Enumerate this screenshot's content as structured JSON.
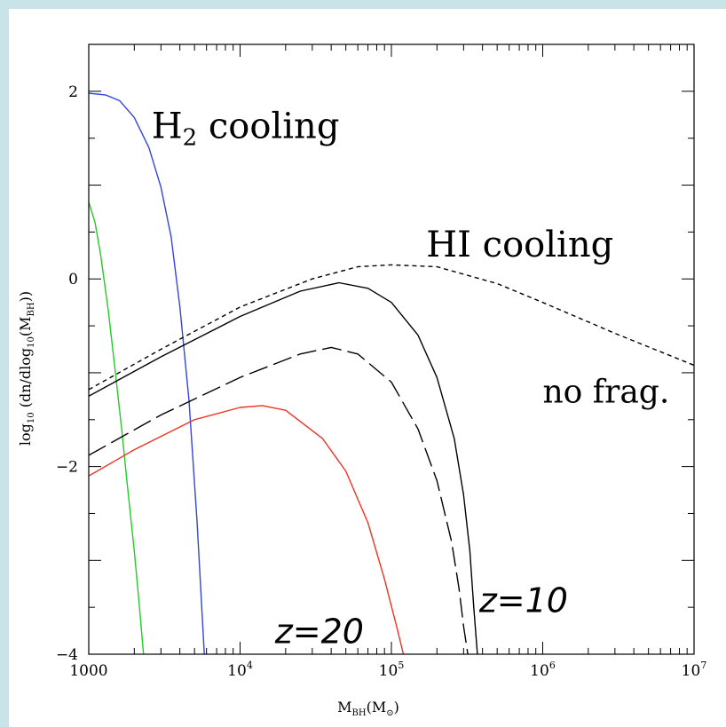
{
  "chart_data": {
    "type": "line",
    "title": "",
    "xlabel": "M_BH(M_⊙)",
    "xlabel_parts": {
      "main": "M",
      "sub": "BH",
      "paren_open": "(M",
      "sun_sub": "⊙",
      "paren_close": ")"
    },
    "ylabel": "log10 (dn/dlog10(MBH))",
    "ylabel_parts": {
      "a": "log",
      "a_sub": "10",
      "b": " (dn/dlog",
      "b_sub": "10",
      "c": "(M",
      "c_sub": "BH",
      "d": "))"
    },
    "x_scale": "log",
    "xlim": [
      1000,
      10000000
    ],
    "ylim": [
      -4,
      2.5
    ],
    "x_ticks": [
      {
        "value": 1000,
        "base": "1000",
        "exp": ""
      },
      {
        "value": 10000,
        "base": "10",
        "exp": "4"
      },
      {
        "value": 100000,
        "base": "10",
        "exp": "5"
      },
      {
        "value": 1000000,
        "base": "10",
        "exp": "6"
      },
      {
        "value": 10000000,
        "base": "10",
        "exp": "7"
      }
    ],
    "y_ticks": [
      {
        "value": 2,
        "label": "2"
      },
      {
        "value": 0,
        "label": "0"
      },
      {
        "value": -2,
        "label": "−2"
      },
      {
        "value": -4,
        "label": "−4"
      }
    ],
    "grid": false,
    "series": [
      {
        "color": "#3344dd",
        "dash": "",
        "x": [
          1000,
          1300,
          1600,
          2000,
          2500,
          3000,
          3500,
          4000,
          4600,
          5200,
          5800
        ],
        "y": [
          1.98,
          1.96,
          1.9,
          1.72,
          1.4,
          0.98,
          0.45,
          -0.3,
          -1.3,
          -2.6,
          -4.0
        ]
      },
      {
        "color": "#22cc22",
        "dash": "",
        "x": [
          1000,
          1100,
          1200,
          1350,
          1500,
          1650,
          1800,
          2000,
          2150,
          2300
        ],
        "y": [
          0.82,
          0.6,
          0.25,
          -0.35,
          -1.0,
          -1.6,
          -2.2,
          -2.9,
          -3.45,
          -4.0
        ]
      },
      {
        "color": "#000000",
        "dash": "5,4",
        "x": [
          1000,
          3000,
          10000,
          30000,
          60000,
          100000,
          200000,
          500000,
          1000000,
          3000000,
          10000000
        ],
        "y": [
          -1.18,
          -0.75,
          -0.3,
          0.0,
          0.13,
          0.15,
          0.13,
          -0.05,
          -0.25,
          -0.58,
          -0.92
        ]
      },
      {
        "color": "#000000",
        "dash": "",
        "x": [
          1000,
          3000,
          10000,
          25000,
          45000,
          70000,
          100000,
          150000,
          200000,
          260000,
          300000,
          330000,
          350000,
          370000
        ],
        "y": [
          -1.25,
          -0.83,
          -0.4,
          -0.13,
          -0.04,
          -0.1,
          -0.25,
          -0.6,
          -1.05,
          -1.7,
          -2.3,
          -2.9,
          -3.5,
          -4.0
        ]
      },
      {
        "color": "#000000",
        "dash": "22,7",
        "x": [
          1000,
          3000,
          10000,
          25000,
          40000,
          60000,
          100000,
          150000,
          200000,
          250000,
          280000,
          300000,
          320000
        ],
        "y": [
          -1.88,
          -1.45,
          -1.05,
          -0.8,
          -0.73,
          -0.8,
          -1.1,
          -1.6,
          -2.15,
          -2.8,
          -3.3,
          -3.7,
          -4.0
        ]
      },
      {
        "color": "#ee3322",
        "dash": "",
        "x": [
          1000,
          2000,
          5000,
          10000,
          14000,
          20000,
          35000,
          50000,
          70000,
          90000,
          110000,
          120000
        ],
        "y": [
          -2.1,
          -1.82,
          -1.5,
          -1.37,
          -1.35,
          -1.4,
          -1.7,
          -2.05,
          -2.6,
          -3.2,
          -3.75,
          -4.0
        ]
      }
    ],
    "annotations": [
      {
        "text": "H",
        "sub": "2",
        "text_after": " cooling",
        "x": 2600,
        "y": 1.5
      },
      {
        "text": "HI cooling",
        "x": 170000,
        "y": 0.24
      },
      {
        "text": "no frag.",
        "x": 1000000,
        "y": -1.32
      },
      {
        "text": "z=10",
        "x": 380000,
        "y": -3.55
      },
      {
        "text": "z=20",
        "x": 17000,
        "y": -3.88
      }
    ]
  }
}
